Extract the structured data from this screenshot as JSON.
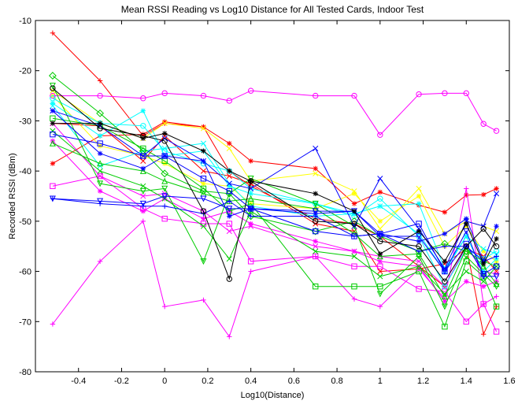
{
  "chart_data": {
    "type": "line",
    "title": "Mean RSSI Reading vs Log10 Distance for All Tested Cards, Indoor Test",
    "xlabel": "Log10(Distance)",
    "ylabel": "Recorded RSSI (dBm)",
    "xlim": [
      -0.6,
      1.6
    ],
    "ylim": [
      -80,
      -10
    ],
    "xticks": [
      "-0.4",
      "-0.2",
      "0",
      "0.2",
      "0.4",
      "0.6",
      "0.8",
      "1",
      "1.2",
      "1.4",
      "1.6"
    ],
    "yticks": [
      "-80",
      "-70",
      "-60",
      "-50",
      "-40",
      "-30",
      "-20",
      "-10"
    ],
    "grid": false,
    "x": [
      -0.52,
      -0.3,
      -0.1,
      0.0,
      0.18,
      0.3,
      0.4,
      0.7,
      0.88,
      1.0,
      1.18,
      1.3,
      1.4,
      1.48,
      1.54
    ],
    "series": [
      {
        "color": "#ff0000",
        "marker": "+",
        "values": [
          -12.5,
          -22,
          -33,
          -30.5,
          -31.2,
          -40,
          -43,
          -49.5,
          -50.5,
          -53,
          -59,
          -63,
          -55,
          -72.5,
          -67
        ]
      },
      {
        "color": "#ff0000",
        "marker": "*",
        "values": [
          -38.5,
          -33,
          -32.7,
          -30.2,
          -31.2,
          -34.5,
          -38,
          -39.5,
          -46.5,
          -44.2,
          -46.8,
          -48.2,
          -44.8,
          -44.7,
          -43.5
        ]
      },
      {
        "color": "#ff0000",
        "marker": "x",
        "values": [
          -30.5,
          -31,
          -38,
          -33,
          -40,
          -41,
          -42.5,
          -50.5,
          -52,
          -60,
          -59.5,
          -58.5,
          -55.5,
          -57,
          -60
        ]
      },
      {
        "color": "#ffff00",
        "marker": "x",
        "values": [
          -24,
          -30.5,
          -33.5,
          -30.5,
          -31.5,
          -35.5,
          -42,
          -40.5,
          -44,
          -51.5,
          -43.5,
          -52.5,
          -50,
          -51,
          -52
        ]
      },
      {
        "color": "#ffff00",
        "marker": "*",
        "values": [
          -25,
          -35,
          -37,
          -38.5,
          -42.5,
          -43,
          -46.5,
          -47.5,
          -44.5,
          -50,
          -45,
          -55,
          -51,
          -56,
          -58
        ]
      },
      {
        "color": "#ff00ff",
        "marker": "o",
        "values": [
          -25,
          -25,
          -25.5,
          -24.5,
          -25,
          -26,
          -24,
          -25,
          -25,
          -32.8,
          -24.7,
          -24.5,
          -24.5,
          -30.6,
          -32
        ]
      },
      {
        "color": "#ff00ff",
        "marker": "+",
        "values": [
          -70.5,
          -58,
          -50,
          -67,
          -65.7,
          -73,
          -60,
          -57,
          -65.5,
          -67,
          -59.5,
          -65.5,
          -43.5,
          -66.5,
          -65
        ]
      },
      {
        "color": "#ff00ff",
        "marker": "s",
        "values": [
          -43,
          -41,
          -47.5,
          -49.5,
          -50.5,
          -50.5,
          -58,
          -57,
          -59,
          -59,
          -63.5,
          -64,
          -70,
          -66.5,
          -72
        ]
      },
      {
        "color": "#ff00ff",
        "marker": "x",
        "values": [
          -30.5,
          -41,
          -45,
          -44.5,
          -48,
          -52,
          -51,
          -55,
          -56,
          -57,
          -58,
          -63,
          -55,
          -60,
          -60.5
        ]
      },
      {
        "color": "#ff00ff",
        "marker": "*",
        "values": [
          -34,
          -44,
          -48,
          -45.5,
          -49.5,
          -48,
          -50.5,
          -54,
          -56,
          -58,
          -59,
          -66,
          -62,
          -63,
          -62
        ]
      },
      {
        "color": "#00ffff",
        "marker": "o",
        "values": [
          -25.5,
          -30.5,
          -31,
          -36,
          -38.5,
          -40,
          -43.5,
          -46.5,
          -49,
          -45.5,
          -53,
          -63,
          -55.5,
          -57.5,
          -56
        ]
      },
      {
        "color": "#00ffff",
        "marker": "*",
        "values": [
          -26.5,
          -33,
          -28,
          -37,
          -36,
          -43,
          -44.5,
          -46.5,
          -48.5,
          -47,
          -46.5,
          -59.5,
          -53,
          -60,
          -57.5
        ]
      },
      {
        "color": "#00ffff",
        "marker": "x",
        "values": [
          -27,
          -39,
          -36,
          -35.5,
          -34.5,
          -42.5,
          -47,
          -49,
          -48.5,
          -47,
          -52.5,
          -60,
          -53,
          -55.5,
          -56.5
        ]
      },
      {
        "color": "#00cc00",
        "marker": "d",
        "values": [
          -21,
          -28.5,
          -36,
          -40.5,
          -44,
          -44.5,
          -49,
          -52,
          -50,
          -53,
          -56,
          -54.5,
          -56,
          -58,
          -59
        ]
      },
      {
        "color": "#00cc00",
        "marker": "s",
        "values": [
          -29.5,
          -31,
          -35.5,
          -38,
          -43.5,
          -48,
          -46.5,
          -63,
          -63,
          -63,
          -60,
          -71,
          -58,
          -61,
          -67
        ]
      },
      {
        "color": "#00cc00",
        "marker": "v",
        "values": [
          -23,
          -42.5,
          -44,
          -43.5,
          -58,
          -44.5,
          -41.5,
          -46.5,
          -51,
          -64.5,
          -57,
          -67,
          -57,
          -60.5,
          -63
        ]
      },
      {
        "color": "#00cc00",
        "marker": "^",
        "values": [
          -34.5,
          -38.5,
          -40,
          -42,
          -44.5,
          -46,
          -45.5,
          -47.5,
          -52.5,
          -57,
          -56.5,
          -65,
          -55.5,
          -59,
          -62.5
        ]
      },
      {
        "color": "#00cc00",
        "marker": "x",
        "values": [
          -32,
          -40,
          -43,
          -45.5,
          -51,
          -57.5,
          -48,
          -56,
          -57,
          -61,
          -59,
          -64.5,
          -60,
          -62,
          -59
        ]
      },
      {
        "color": "#0000ff",
        "marker": "x",
        "values": [
          -28,
          -31,
          -37,
          -33.5,
          -38,
          -42.5,
          -43.5,
          -35.5,
          -51,
          -41.5,
          -51.5,
          -59.5,
          -50,
          -51,
          -44.5
        ]
      },
      {
        "color": "#0000ff",
        "marker": "*",
        "values": [
          -28,
          -36.5,
          -39.5,
          -37,
          -38,
          -49,
          -47.5,
          -48.5,
          -48,
          -52.5,
          -54,
          -52.5,
          -49.5,
          -58,
          -51
        ]
      },
      {
        "color": "#0000ff",
        "marker": "s",
        "values": [
          -32.7,
          -34.5,
          -37,
          -37,
          -41.5,
          -44,
          -47.5,
          -52,
          -53,
          -52.5,
          -50.5,
          -60,
          -54.5,
          -60.5,
          -59
        ]
      },
      {
        "color": "#0000ff",
        "marker": "v",
        "values": [
          -45.5,
          -46,
          -46.5,
          -45,
          -45.5,
          -47.5,
          -47.5,
          -48,
          -48,
          -53,
          -53,
          -60,
          -52,
          -61,
          -61
        ]
      },
      {
        "color": "#0000ff",
        "marker": "+",
        "values": [
          -45.5,
          -46.5,
          -47,
          -47,
          -48.5,
          -46,
          -49,
          -49,
          -53,
          -52.5,
          -56,
          -55,
          -55,
          -58,
          -57
        ]
      },
      {
        "color": "#000000",
        "marker": "o",
        "values": [
          -23.5,
          -31.5,
          -33,
          -34,
          -48,
          -61.5,
          -42,
          -50,
          -50.5,
          -54,
          -55,
          -62,
          -55,
          -51.5,
          -55
        ]
      },
      {
        "color": "#000000",
        "marker": "*",
        "values": [
          -30.5,
          -30.5,
          -33.5,
          -32.5,
          -36,
          -40,
          -42,
          -44.5,
          -48,
          -56.5,
          -52,
          -58,
          -50.5,
          -58.5,
          -53.5
        ]
      }
    ]
  }
}
